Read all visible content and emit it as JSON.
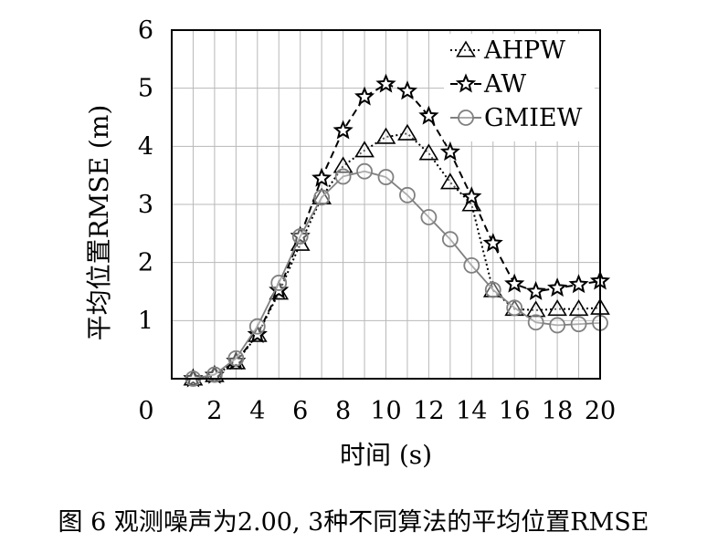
{
  "caption": "图 6 观测噪声为2.00, 3种不同算法的平均位置RMSE",
  "chart_data": {
    "type": "line",
    "xlabel": "时间 (s)",
    "ylabel": "平均位置RMSE (m)",
    "xlim": [
      0,
      20
    ],
    "ylim": [
      0,
      6
    ],
    "x_ticks": [
      "0",
      "2",
      "4",
      "6",
      "8",
      "10",
      "12",
      "14",
      "16",
      "18",
      "20"
    ],
    "y_ticks": [
      "1",
      "2",
      "3",
      "4",
      "5",
      "6"
    ],
    "grid": true,
    "legend_position": "top-right",
    "x": [
      1,
      2,
      3,
      4,
      5,
      6,
      7,
      8,
      9,
      10,
      11,
      12,
      13,
      14,
      15,
      16,
      17,
      18,
      19,
      20
    ],
    "series": [
      {
        "name": "AHPW",
        "marker": "triangle",
        "line_style": "dotted",
        "color": "#000000",
        "values": [
          0.0,
          0.06,
          0.28,
          0.75,
          1.48,
          2.32,
          3.12,
          3.66,
          3.93,
          4.16,
          4.22,
          3.88,
          3.38,
          3.0,
          1.52,
          1.2,
          1.18,
          1.2,
          1.2,
          1.22
        ]
      },
      {
        "name": "AW",
        "marker": "star",
        "line_style": "dashed",
        "color": "#000000",
        "values": [
          0.0,
          0.06,
          0.3,
          0.76,
          1.52,
          2.45,
          3.45,
          4.27,
          4.85,
          5.07,
          4.95,
          4.52,
          3.9,
          3.13,
          2.33,
          1.63,
          1.5,
          1.56,
          1.62,
          1.68
        ]
      },
      {
        "name": "GMIEW",
        "marker": "circle",
        "line_style": "solid",
        "color": "#808080",
        "values": [
          0.0,
          0.07,
          0.35,
          0.9,
          1.65,
          2.45,
          3.12,
          3.48,
          3.57,
          3.47,
          3.16,
          2.78,
          2.4,
          1.95,
          1.53,
          1.22,
          0.97,
          0.92,
          0.94,
          0.96
        ]
      }
    ]
  }
}
